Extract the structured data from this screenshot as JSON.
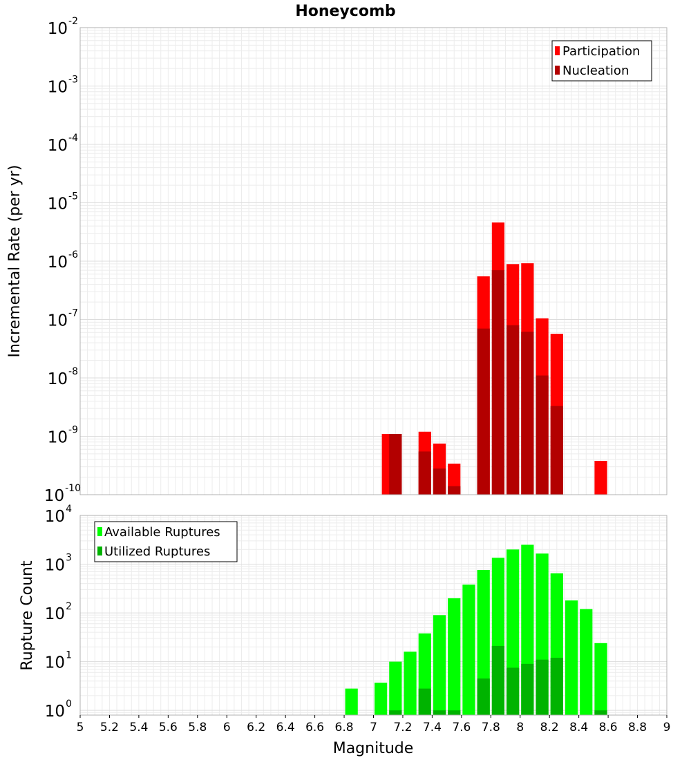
{
  "chart_data": [
    {
      "type": "bar",
      "title": "Honeycomb",
      "ylabel": "Incremental Rate (per yr)",
      "xlabel": "",
      "y_scale": "log",
      "ylim": [
        1e-10,
        0.01
      ],
      "xlim": [
        5,
        9
      ],
      "legend": {
        "placement": "top-right",
        "entries": [
          "Participation",
          "Nucleation"
        ]
      },
      "grid": true,
      "series": [
        {
          "name": "Participation",
          "color": "#ff0000",
          "x": [
            7.1,
            7.35,
            7.45,
            7.55,
            7.75,
            7.85,
            7.95,
            8.05,
            8.15,
            8.25,
            8.55
          ],
          "values": [
            1.1e-09,
            1.2e-09,
            7.5e-10,
            3.4e-10,
            5.5e-07,
            4.6e-06,
            8.9e-07,
            9.2e-07,
            1.05e-07,
            5.7e-08,
            3.8e-10
          ]
        },
        {
          "name": "Nucleation",
          "color": "#b30000",
          "x": [
            7.15,
            7.35,
            7.45,
            7.55,
            7.75,
            7.85,
            7.95,
            8.05,
            8.15,
            8.25
          ],
          "values": [
            1.1e-09,
            5.5e-10,
            2.8e-10,
            1.4e-10,
            7e-08,
            7e-07,
            8e-08,
            6.2e-08,
            1.1e-08,
            3.3e-09
          ]
        }
      ]
    },
    {
      "type": "bar",
      "title": "",
      "ylabel": "Rupture Count",
      "xlabel": "Magnitude",
      "y_scale": "log",
      "ylim": [
        0.8,
        10000
      ],
      "xlim": [
        5,
        9
      ],
      "x_ticks": [
        "5",
        "5.2",
        "5.4",
        "5.6",
        "5.8",
        "6",
        "6.2",
        "6.4",
        "6.6",
        "6.8",
        "7",
        "7.2",
        "7.4",
        "7.6",
        "7.8",
        "8",
        "8.2",
        "8.4",
        "8.6",
        "8.8",
        "9"
      ],
      "legend": {
        "placement": "top-left",
        "entries": [
          "Available Ruptures",
          "Utilized Ruptures"
        ]
      },
      "grid": true,
      "series": [
        {
          "name": "Available Ruptures",
          "color": "#00ff00",
          "x": [
            6.85,
            7.05,
            7.15,
            7.25,
            7.35,
            7.45,
            7.55,
            7.65,
            7.75,
            7.85,
            7.95,
            8.05,
            8.15,
            8.25,
            8.35,
            8.45,
            8.55
          ],
          "values": [
            2.8,
            3.7,
            10,
            16,
            38,
            90,
            200,
            380,
            760,
            1350,
            2000,
            2500,
            1650,
            650,
            180,
            120,
            24
          ]
        },
        {
          "name": "Utilized Ruptures",
          "color": "#00b300",
          "x": [
            7.15,
            7.35,
            7.45,
            7.55,
            7.75,
            7.85,
            7.95,
            8.05,
            8.15,
            8.25,
            8.55
          ],
          "values": [
            1,
            2.8,
            1,
            1,
            4.5,
            21,
            7.5,
            9,
            11,
            12,
            1
          ]
        }
      ]
    }
  ]
}
